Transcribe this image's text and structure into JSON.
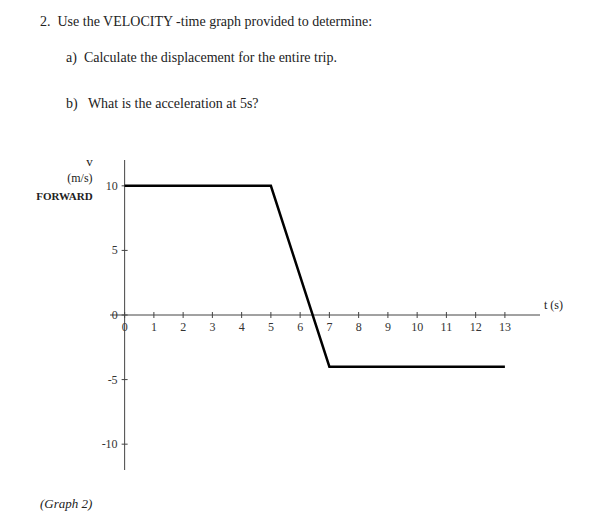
{
  "chart_data": {
    "type": "line",
    "title": "2.  Use the VELOCITY -time graph provided to determine:",
    "annotations": [
      "a)  Calculate the displacement for the entire trip.",
      "b)   What is the acceleration at 5s?",
      "(Graph 2)"
    ],
    "x_label": "t (s)",
    "y_label": [
      "v",
      "(m/s)",
      "FORWARD"
    ],
    "x": [
      0,
      5,
      7,
      13
    ],
    "values": [
      10,
      10,
      -4,
      -4
    ],
    "color": "black",
    "xlim": [
      -0.5,
      14.2
    ],
    "ylim": [
      -12,
      12
    ],
    "xticks": [
      0,
      1,
      2,
      3,
      4,
      5,
      6,
      7,
      8,
      9,
      10,
      11,
      12,
      13
    ],
    "yticks": [
      -10,
      -5,
      0,
      5,
      10
    ],
    "grid": false
  }
}
